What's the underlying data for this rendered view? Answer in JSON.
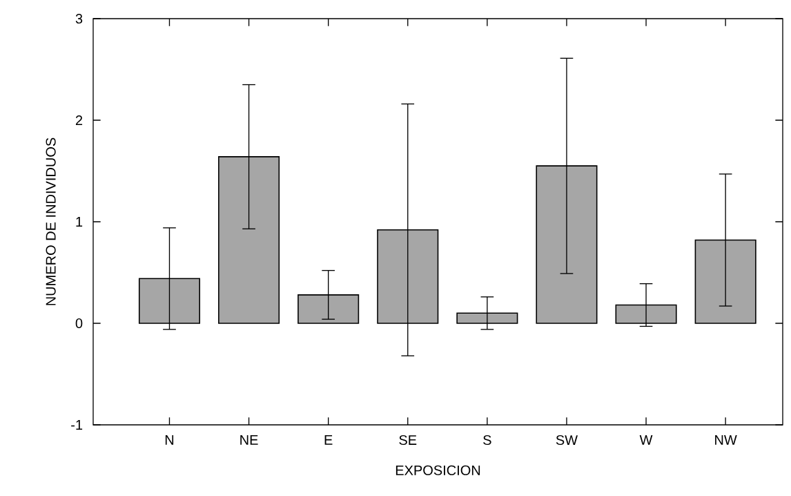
{
  "chart_data": {
    "type": "bar",
    "xlabel": "EXPOSICION",
    "ylabel": "NUMERO DE INDIVIDUOS",
    "categories": [
      "N",
      "NE",
      "E",
      "SE",
      "S",
      "SW",
      "W",
      "NW"
    ],
    "values": [
      0.44,
      1.64,
      0.28,
      0.92,
      0.1,
      1.55,
      0.18,
      0.82
    ],
    "errors": [
      0.5,
      0.71,
      0.24,
      1.24,
      0.16,
      1.06,
      0.21,
      0.65
    ],
    "color": "#a6a6a6",
    "ylim": [
      -1,
      3
    ],
    "yticks": [
      -1,
      0,
      1,
      2,
      3
    ],
    "grid": false,
    "legend": false
  }
}
